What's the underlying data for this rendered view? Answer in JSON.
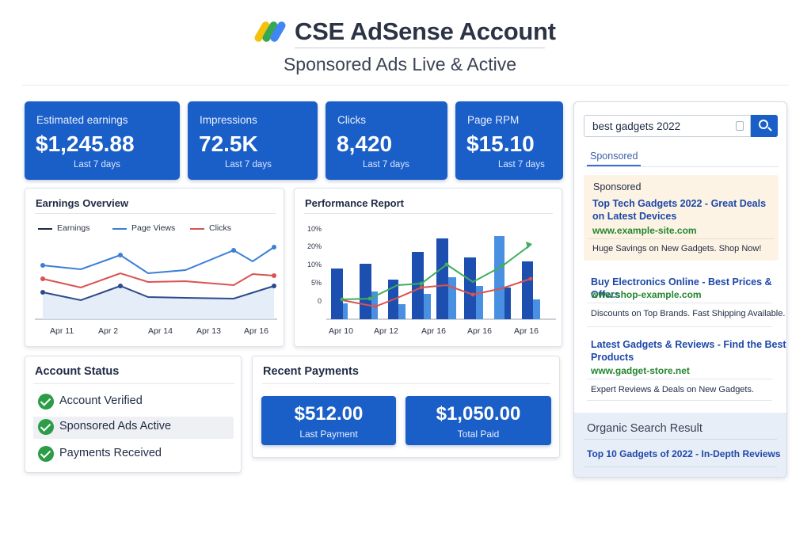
{
  "header": {
    "title": "CSE AdSense Account",
    "subtitle": "Sponsored Ads Live & Active",
    "logo_icon": "adsense-logo-icon"
  },
  "stats": [
    {
      "label": "Estimated earnings",
      "value": "$1,245.88",
      "period": "Last 7 days"
    },
    {
      "label": "Impressions",
      "value": "72.5K",
      "period": "Last 7 days"
    },
    {
      "label": "Clicks",
      "value": "8,420",
      "period": "Last 7 days"
    },
    {
      "label": "Page RPM",
      "value": "$15.10",
      "period": "Last 7 days"
    }
  ],
  "earnings_overview": {
    "title": "Earnings Overview",
    "legend": [
      "Earnings",
      "Page Views",
      "Clicks"
    ],
    "x_labels": [
      "Apr 11",
      "Apr 2",
      "Apr 14",
      "Apr 13",
      "Apr 16"
    ]
  },
  "performance_report": {
    "title": "Performance Report",
    "y_labels": [
      "10%",
      "20%",
      "10%",
      "5%",
      "0"
    ],
    "x_labels": [
      "Apr 10",
      "Apr 12",
      "Apr 16",
      "Apr 16",
      "Apr 16"
    ]
  },
  "account_status": {
    "title": "Account Status",
    "items": [
      {
        "label": "Account Verified"
      },
      {
        "label": "Sponsored Ads Active"
      },
      {
        "label": "Payments Received"
      }
    ]
  },
  "recent_payments": {
    "title": "Recent Payments",
    "items": [
      {
        "value": "$512.00",
        "label": "Last Payment"
      },
      {
        "value": "$1,050.00",
        "label": "Total Paid"
      }
    ]
  },
  "serp": {
    "query": "best gadgets 2022",
    "tab": "Sponsored",
    "ads": [
      {
        "label": "Sponsored",
        "title_line1": "Top Tech Gadgets 2022 - Great Deals",
        "title_line2": "on Latest Devices",
        "url": "www.example-site.com",
        "desc": "Huge Savings on New Gadgets. Shop Now!"
      },
      {
        "title_line1": "Buy Electronics Online - Best Prices & Offers",
        "url": "www.shop-example.com",
        "desc": "Discounts on Top Brands. Fast Shipping Available."
      },
      {
        "title_line1": "Latest Gadgets & Reviews - Find the Best",
        "title_line2": "Products",
        "url": "www.gadget-store.net",
        "desc": "Expert Reviews & Deals on New Gadgets."
      }
    ],
    "organic": {
      "heading": "Organic Search Result",
      "link": "Top 10 Gadgets of 2022 - In-Depth Reviews"
    }
  },
  "colors": {
    "primary": "#1a5ec8",
    "earnings_line": "#1f2a44",
    "page_views_line": "#3b7fd6",
    "clicks_line": "#d9534f",
    "check": "#2c9c47",
    "ad_url": "#24862f",
    "ad_title": "#1d48a8"
  }
}
